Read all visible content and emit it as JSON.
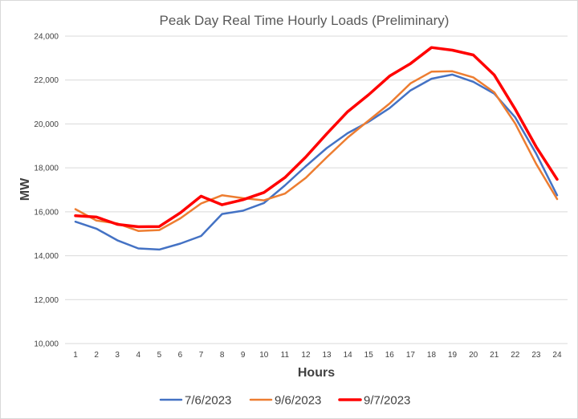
{
  "chart_data": {
    "type": "line",
    "title": "Peak Day Real Time Hourly Loads (Preliminary)",
    "xlabel": "Hours",
    "ylabel": "MW",
    "x": [
      1,
      2,
      3,
      4,
      5,
      6,
      7,
      8,
      9,
      10,
      11,
      12,
      13,
      14,
      15,
      16,
      17,
      18,
      19,
      20,
      21,
      22,
      23,
      24
    ],
    "ylim": [
      10000,
      24000
    ],
    "yticks": [
      10000,
      12000,
      14000,
      16000,
      18000,
      20000,
      22000,
      24000
    ],
    "ytick_labels": [
      "10,000",
      "12,000",
      "14,000",
      "16,000",
      "18,000",
      "20,000",
      "22,000",
      "24,000"
    ],
    "grid": true,
    "legend_position": "bottom",
    "series": [
      {
        "name": "7/6/2023",
        "color": "#4472c4",
        "values": [
          15550,
          15230,
          14700,
          14330,
          14280,
          14550,
          14900,
          15900,
          16050,
          16400,
          17200,
          18080,
          18900,
          19580,
          20100,
          20720,
          21530,
          22060,
          22250,
          21920,
          21380,
          20300,
          18650,
          16750
        ]
      },
      {
        "name": "9/6/2023",
        "color": "#ed7d31",
        "values": [
          16120,
          15600,
          15470,
          15130,
          15170,
          15700,
          16380,
          16750,
          16620,
          16520,
          16830,
          17550,
          18480,
          19380,
          20160,
          20930,
          21850,
          22380,
          22400,
          22120,
          21440,
          20020,
          18180,
          16580
        ]
      },
      {
        "name": "9/7/2023",
        "color": "#ff0000",
        "values": [
          15820,
          15760,
          15430,
          15320,
          15330,
          15950,
          16710,
          16320,
          16550,
          16880,
          17560,
          18500,
          19550,
          20560,
          21330,
          22180,
          22750,
          23480,
          23360,
          23140,
          22230,
          20670,
          18960,
          17480
        ]
      }
    ]
  }
}
